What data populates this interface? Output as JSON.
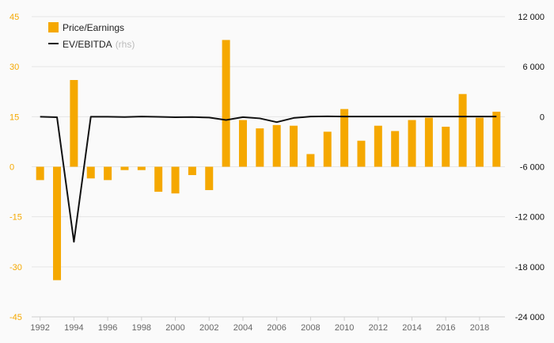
{
  "chart_data": {
    "type": "bar+line",
    "x": [
      1992,
      1993,
      1994,
      1995,
      1996,
      1997,
      1998,
      1999,
      2000,
      2001,
      2002,
      2003,
      2004,
      2005,
      2006,
      2007,
      2008,
      2009,
      2010,
      2011,
      2012,
      2013,
      2014,
      2015,
      2016,
      2017,
      2018,
      2019
    ],
    "x_tick_labels": [
      "1992",
      "1994",
      "1996",
      "1998",
      "2000",
      "2002",
      "2004",
      "2006",
      "2008",
      "2010",
      "2012",
      "2014",
      "2016",
      "2018"
    ],
    "series": [
      {
        "name": "Price/Earnings",
        "type": "bar",
        "axis": "left",
        "color": "#f5a800",
        "values": [
          -4,
          -34,
          26,
          -3.5,
          -4,
          -1,
          -1,
          -7.5,
          -8,
          -2.5,
          -7,
          38,
          14,
          11.5,
          12.5,
          12.3,
          3.8,
          10.5,
          17.3,
          7.8,
          12.3,
          10.7,
          14,
          14.7,
          12,
          21.8,
          14.7,
          16.5
        ]
      },
      {
        "name": "EV/EBITDA",
        "legend_suffix": "(rhs)",
        "type": "line",
        "axis": "right",
        "color": "#111111",
        "values": [
          0,
          -60,
          -15000,
          0,
          0,
          -40,
          20,
          -20,
          -60,
          -40,
          -100,
          -400,
          -50,
          -200,
          -650,
          -150,
          20,
          40,
          20,
          20,
          20,
          20,
          20,
          20,
          20,
          20,
          20,
          20
        ]
      }
    ],
    "left_axis": {
      "ylim": [
        -45,
        45
      ],
      "ticks": [
        45,
        30,
        15,
        0,
        -15,
        -30,
        -45
      ],
      "tick_labels": [
        "45",
        "30",
        "15",
        "0",
        "-15",
        "-30",
        "-45"
      ],
      "color": "#f5a800"
    },
    "right_axis": {
      "ylim": [
        -24000,
        12000
      ],
      "ticks": [
        12000,
        6000,
        0,
        -6000,
        -12000,
        -18000,
        -24000
      ],
      "tick_labels": [
        "12 000",
        "6 000",
        "0",
        "-6 000",
        "-12 000",
        "-18 000",
        "-24 000"
      ],
      "color": "#111111"
    },
    "xlim": [
      1991.5,
      2019.5
    ],
    "grid": true,
    "legend_position": "top-left"
  }
}
